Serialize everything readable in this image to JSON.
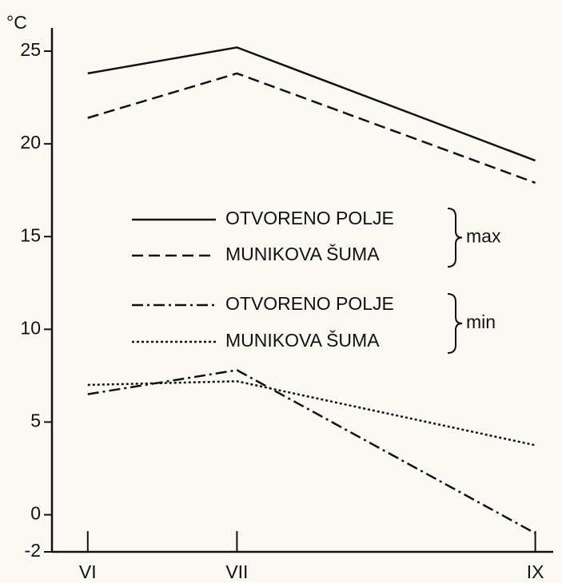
{
  "chart_data": {
    "type": "line",
    "y_unit_label": "°C",
    "x": [
      6,
      7,
      9
    ],
    "xlim": [
      5.76,
      9.12
    ],
    "xticks": [
      {
        "value": 6,
        "label": "VI"
      },
      {
        "value": 7,
        "label": "VII"
      },
      {
        "value": 9,
        "label": "IX"
      }
    ],
    "ylim": [
      -2,
      26.25
    ],
    "yticks": [
      -2,
      0,
      5,
      10,
      15,
      20,
      25
    ],
    "series": [
      {
        "name": "OTVORENO POLJE",
        "color": "#111111",
        "dash": "solid",
        "values": [
          23.8,
          25.2,
          19.1
        ]
      },
      {
        "name": "MUNIKOVA ŠUMA",
        "color": "#111111",
        "dash": "dashed",
        "values": [
          21.4,
          23.8,
          17.9
        ]
      },
      {
        "name": "OTVORENO POLJE",
        "color": "#111111",
        "dash": "dashdot",
        "values": [
          6.5,
          7.8,
          -1.0
        ]
      },
      {
        "name": "MUNIKOVA ŠUMA",
        "color": "#111111",
        "dash": "dotted",
        "values": [
          7.0,
          7.2,
          3.75
        ]
      }
    ],
    "legend_groups": [
      {
        "label": "max"
      },
      {
        "label": "min"
      }
    ]
  }
}
